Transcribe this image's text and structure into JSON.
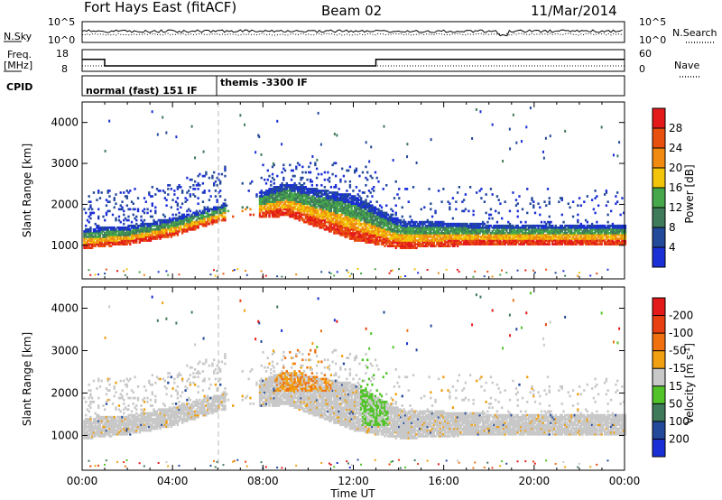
{
  "header": {
    "station": "Fort Hays East (fitACF)",
    "beam": "Beam 02",
    "date": "11/Mar/2014"
  },
  "status_panel": {
    "nsky_label": "N.Sky",
    "nsky_ticks": [
      "10^5",
      "10^0"
    ],
    "nsearch_label": "N.Search",
    "nsearch_ticks": [
      "10^5",
      "10^0"
    ],
    "freq_label_1": "Freq.",
    "freq_label_2": "[MHz]",
    "freq_ticks": [
      "18",
      "8"
    ],
    "nave_label": "Nave",
    "nave_ticks": [
      "60",
      "0"
    ],
    "cpid_label": "CPID",
    "cpid_segments": [
      {
        "label": "normal (fast) 151 IF",
        "start_hour": 0,
        "end_hour": 6
      },
      {
        "label": "themis -3300 IF",
        "start_hour": 6,
        "end_hour": 24
      }
    ],
    "freq_mhz_series": [
      {
        "hour": 0,
        "value": 13.5
      },
      {
        "hour": 1,
        "value": 13.5
      },
      {
        "hour": 1,
        "value": 10.5
      },
      {
        "hour": 13,
        "value": 10.5
      },
      {
        "hour": 13,
        "value": 13.5
      },
      {
        "hour": 24,
        "value": 13.5
      }
    ]
  },
  "chart_data": [
    {
      "type": "heatmap",
      "panel": "power",
      "ylabel": "Slant Range [km]",
      "xlabel": "",
      "xlim_hours": [
        0,
        24
      ],
      "ylim": [
        180,
        4500
      ],
      "y_ticks": [
        "1000",
        "2000",
        "3000",
        "4000"
      ],
      "colorbar": {
        "label": "Power [dB]",
        "ticks": [
          "4",
          "8",
          "12",
          "16",
          "20",
          "24",
          "28"
        ],
        "colors": [
          "#1b2fd6",
          "#23499a",
          "#3f7a5a",
          "#46a84a",
          "#f2c40a",
          "#f08a10",
          "#e85010",
          "#e41a1a"
        ]
      },
      "main_echo_band_km": [
        {
          "hour": 0,
          "low": 900,
          "high": 1400
        },
        {
          "hour": 2,
          "low": 1000,
          "high": 1450
        },
        {
          "hour": 4,
          "low": 1200,
          "high": 1650
        },
        {
          "hour": 6,
          "low": 1550,
          "high": 1950
        },
        {
          "hour": 9,
          "low": 1700,
          "high": 2500
        },
        {
          "hour": 12,
          "low": 1100,
          "high": 2200
        },
        {
          "hour": 14,
          "low": 900,
          "high": 1600
        },
        {
          "hour": 18,
          "low": 1000,
          "high": 1500
        },
        {
          "hour": 24,
          "low": 1000,
          "high": 1500
        }
      ]
    },
    {
      "type": "heatmap",
      "panel": "velocity",
      "ylabel": "Slant Range [km]",
      "xlabel": "Time UT",
      "xlim_hours": [
        0,
        24
      ],
      "ylim": [
        180,
        4500
      ],
      "y_ticks": [
        "1000",
        "2000",
        "3000",
        "4000"
      ],
      "x_ticks": [
        "00:00",
        "04:00",
        "08:00",
        "12:00",
        "16:00",
        "20:00",
        "00:00"
      ],
      "colorbar": {
        "label": "Velocity [m s",
        "label_superscript": "-1",
        "label_suffix": "]",
        "ticks": [
          "200",
          "100",
          "50",
          "15",
          "-15",
          "-50",
          "-100",
          "-200"
        ],
        "colors": [
          "#1b2fd6",
          "#23499a",
          "#3f7a5a",
          "#52c42a",
          "#c8c8c8",
          "#f0a010",
          "#f07010",
          "#e84010",
          "#e41a1a"
        ]
      }
    }
  ]
}
